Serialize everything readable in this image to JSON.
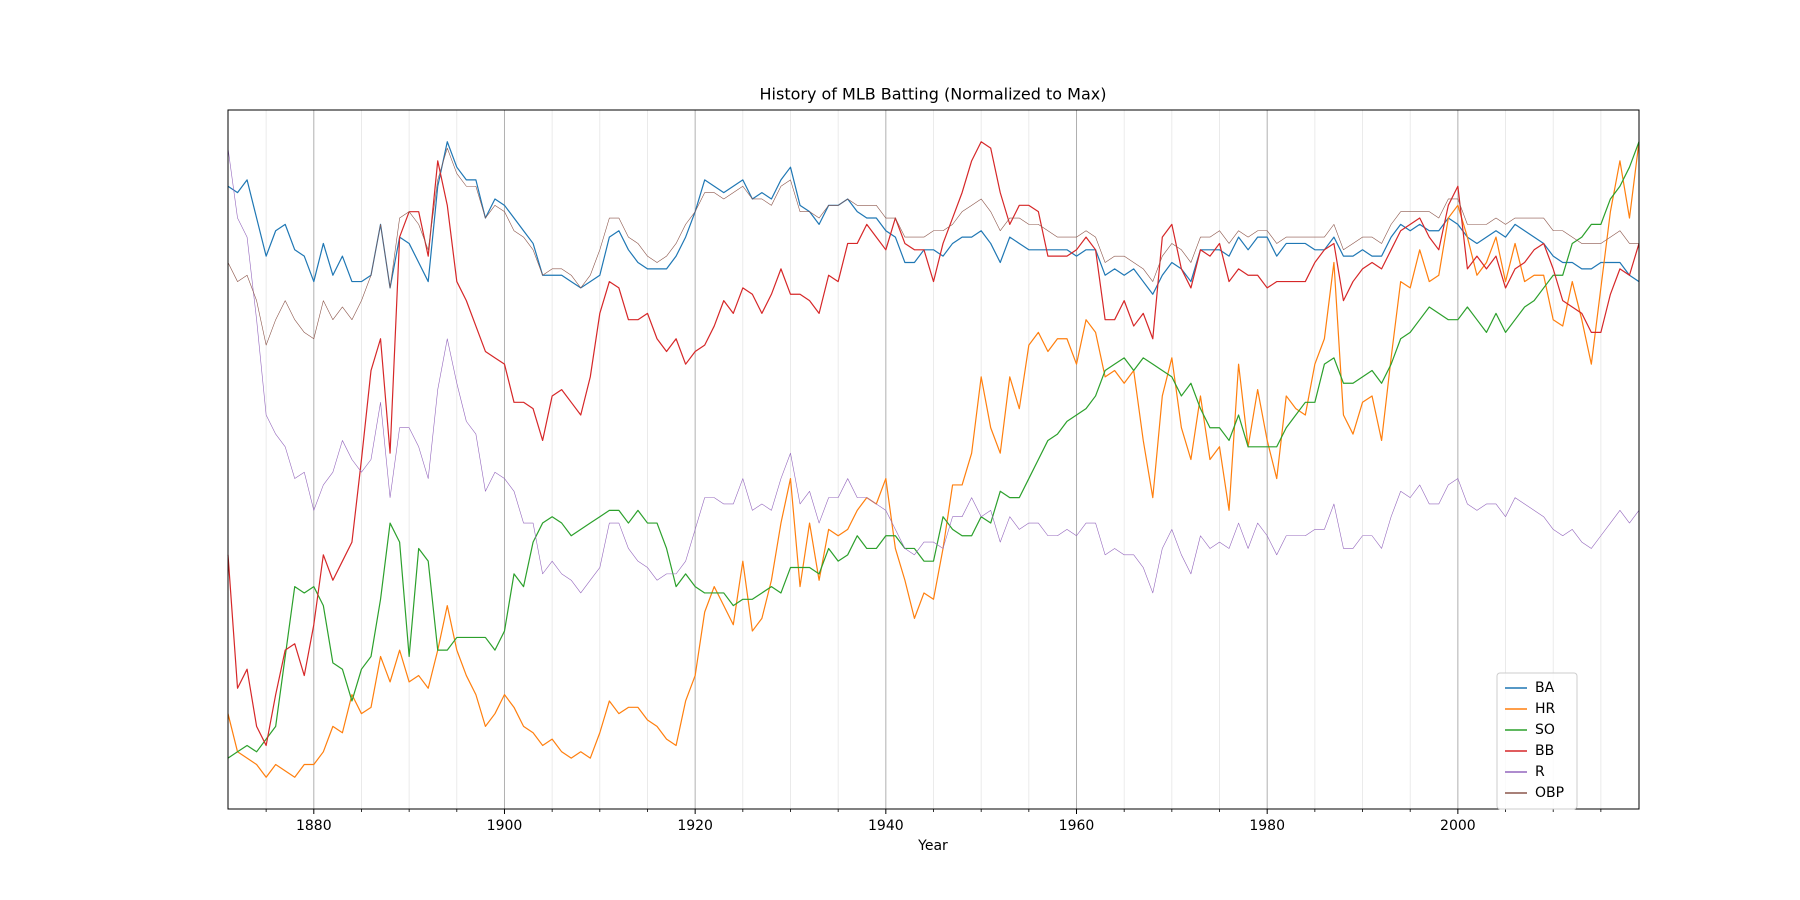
{
  "chart_data": {
    "type": "line",
    "title": "History of MLB Batting (Normalized to Max)",
    "xlabel": "Year",
    "x": [
      1871,
      1872,
      1873,
      1874,
      1875,
      1876,
      1877,
      1878,
      1879,
      1880,
      1881,
      1882,
      1883,
      1884,
      1885,
      1886,
      1887,
      1888,
      1889,
      1890,
      1891,
      1892,
      1893,
      1894,
      1895,
      1896,
      1897,
      1898,
      1899,
      1900,
      1901,
      1902,
      1903,
      1904,
      1905,
      1906,
      1907,
      1908,
      1909,
      1910,
      1911,
      1912,
      1913,
      1914,
      1915,
      1916,
      1917,
      1918,
      1919,
      1920,
      1921,
      1922,
      1923,
      1924,
      1925,
      1926,
      1927,
      1928,
      1929,
      1930,
      1931,
      1932,
      1933,
      1934,
      1935,
      1936,
      1937,
      1938,
      1939,
      1940,
      1941,
      1942,
      1943,
      1944,
      1945,
      1946,
      1947,
      1948,
      1949,
      1950,
      1951,
      1952,
      1953,
      1954,
      1955,
      1956,
      1957,
      1958,
      1959,
      1960,
      1961,
      1962,
      1963,
      1964,
      1965,
      1966,
      1967,
      1968,
      1969,
      1970,
      1971,
      1972,
      1973,
      1974,
      1975,
      1976,
      1977,
      1978,
      1979,
      1980,
      1981,
      1982,
      1983,
      1984,
      1985,
      1986,
      1987,
      1988,
      1989,
      1990,
      1991,
      1992,
      1993,
      1994,
      1995,
      1996,
      1997,
      1998,
      1999,
      2000,
      2001,
      2002,
      2003,
      2004,
      2005,
      2006,
      2007,
      2008,
      2009,
      2010,
      2011,
      2012,
      2013,
      2014,
      2015,
      2016,
      2017,
      2018,
      2019
    ],
    "series": [
      {
        "name": "BA",
        "color": "#1f77b4",
        "linewidth": 1.2,
        "values": [
          0.93,
          0.92,
          0.94,
          0.88,
          0.82,
          0.86,
          0.87,
          0.83,
          0.82,
          0.78,
          0.84,
          0.79,
          0.82,
          0.78,
          0.78,
          0.79,
          0.87,
          0.77,
          0.85,
          0.84,
          0.81,
          0.78,
          0.93,
          1.0,
          0.96,
          0.94,
          0.94,
          0.88,
          0.91,
          0.9,
          0.88,
          0.86,
          0.84,
          0.79,
          0.79,
          0.79,
          0.78,
          0.77,
          0.78,
          0.79,
          0.85,
          0.86,
          0.83,
          0.81,
          0.8,
          0.8,
          0.8,
          0.82,
          0.85,
          0.89,
          0.94,
          0.93,
          0.92,
          0.93,
          0.94,
          0.91,
          0.92,
          0.91,
          0.94,
          0.96,
          0.9,
          0.89,
          0.87,
          0.9,
          0.9,
          0.91,
          0.89,
          0.88,
          0.88,
          0.86,
          0.85,
          0.81,
          0.81,
          0.83,
          0.83,
          0.82,
          0.84,
          0.85,
          0.85,
          0.86,
          0.84,
          0.81,
          0.85,
          0.84,
          0.83,
          0.83,
          0.83,
          0.83,
          0.83,
          0.82,
          0.83,
          0.83,
          0.79,
          0.8,
          0.79,
          0.8,
          0.78,
          0.76,
          0.79,
          0.81,
          0.8,
          0.78,
          0.83,
          0.83,
          0.83,
          0.82,
          0.85,
          0.83,
          0.85,
          0.85,
          0.82,
          0.84,
          0.84,
          0.84,
          0.83,
          0.83,
          0.85,
          0.82,
          0.82,
          0.83,
          0.82,
          0.82,
          0.85,
          0.87,
          0.86,
          0.87,
          0.86,
          0.86,
          0.88,
          0.87,
          0.85,
          0.84,
          0.85,
          0.86,
          0.85,
          0.87,
          0.86,
          0.85,
          0.84,
          0.82,
          0.81,
          0.81,
          0.8,
          0.8,
          0.81,
          0.81,
          0.81,
          0.79,
          0.78
        ]
      },
      {
        "name": "HR",
        "color": "#ff7f0e",
        "linewidth": 1.2,
        "values": [
          0.1,
          0.04,
          0.03,
          0.02,
          0.0,
          0.02,
          0.01,
          0.0,
          0.02,
          0.02,
          0.04,
          0.08,
          0.07,
          0.13,
          0.1,
          0.11,
          0.19,
          0.15,
          0.2,
          0.15,
          0.16,
          0.14,
          0.2,
          0.27,
          0.2,
          0.16,
          0.13,
          0.08,
          0.1,
          0.13,
          0.11,
          0.08,
          0.07,
          0.05,
          0.06,
          0.04,
          0.03,
          0.04,
          0.03,
          0.07,
          0.12,
          0.1,
          0.11,
          0.11,
          0.09,
          0.08,
          0.06,
          0.05,
          0.12,
          0.16,
          0.26,
          0.3,
          0.27,
          0.24,
          0.34,
          0.23,
          0.25,
          0.31,
          0.4,
          0.47,
          0.3,
          0.4,
          0.31,
          0.39,
          0.38,
          0.39,
          0.42,
          0.44,
          0.43,
          0.47,
          0.36,
          0.31,
          0.25,
          0.29,
          0.28,
          0.36,
          0.46,
          0.46,
          0.51,
          0.63,
          0.55,
          0.51,
          0.63,
          0.58,
          0.68,
          0.7,
          0.67,
          0.69,
          0.69,
          0.65,
          0.72,
          0.7,
          0.63,
          0.64,
          0.62,
          0.64,
          0.53,
          0.44,
          0.6,
          0.66,
          0.55,
          0.5,
          0.6,
          0.5,
          0.52,
          0.42,
          0.65,
          0.52,
          0.61,
          0.53,
          0.47,
          0.6,
          0.58,
          0.57,
          0.65,
          0.69,
          0.81,
          0.57,
          0.54,
          0.59,
          0.6,
          0.53,
          0.66,
          0.78,
          0.77,
          0.83,
          0.78,
          0.79,
          0.88,
          0.9,
          0.85,
          0.79,
          0.81,
          0.85,
          0.78,
          0.84,
          0.78,
          0.79,
          0.79,
          0.72,
          0.71,
          0.78,
          0.72,
          0.65,
          0.77,
          0.89,
          0.97,
          0.88,
          1.0
        ]
      },
      {
        "name": "SO",
        "color": "#2ca02c",
        "linewidth": 1.2,
        "values": [
          0.03,
          0.04,
          0.05,
          0.04,
          0.06,
          0.08,
          0.19,
          0.3,
          0.29,
          0.3,
          0.27,
          0.18,
          0.17,
          0.12,
          0.17,
          0.19,
          0.28,
          0.4,
          0.37,
          0.19,
          0.36,
          0.34,
          0.2,
          0.2,
          0.22,
          0.22,
          0.22,
          0.22,
          0.2,
          0.23,
          0.32,
          0.3,
          0.37,
          0.4,
          0.41,
          0.4,
          0.38,
          0.39,
          0.4,
          0.41,
          0.42,
          0.42,
          0.4,
          0.42,
          0.4,
          0.4,
          0.36,
          0.3,
          0.32,
          0.3,
          0.29,
          0.29,
          0.29,
          0.27,
          0.28,
          0.28,
          0.29,
          0.3,
          0.29,
          0.33,
          0.33,
          0.33,
          0.32,
          0.36,
          0.34,
          0.35,
          0.38,
          0.36,
          0.36,
          0.38,
          0.38,
          0.36,
          0.36,
          0.34,
          0.34,
          0.41,
          0.39,
          0.38,
          0.38,
          0.41,
          0.4,
          0.45,
          0.44,
          0.44,
          0.47,
          0.5,
          0.53,
          0.54,
          0.56,
          0.57,
          0.58,
          0.6,
          0.64,
          0.65,
          0.66,
          0.64,
          0.66,
          0.65,
          0.64,
          0.63,
          0.6,
          0.62,
          0.58,
          0.55,
          0.55,
          0.53,
          0.57,
          0.52,
          0.52,
          0.52,
          0.52,
          0.55,
          0.57,
          0.59,
          0.59,
          0.65,
          0.66,
          0.62,
          0.62,
          0.63,
          0.64,
          0.62,
          0.65,
          0.69,
          0.7,
          0.72,
          0.74,
          0.73,
          0.72,
          0.72,
          0.74,
          0.72,
          0.7,
          0.73,
          0.7,
          0.72,
          0.74,
          0.75,
          0.77,
          0.79,
          0.79,
          0.84,
          0.85,
          0.87,
          0.87,
          0.91,
          0.93,
          0.96,
          1.0
        ]
      },
      {
        "name": "BB",
        "color": "#d62728",
        "linewidth": 1.2,
        "values": [
          0.35,
          0.14,
          0.17,
          0.08,
          0.05,
          0.13,
          0.2,
          0.21,
          0.16,
          0.24,
          0.35,
          0.31,
          0.34,
          0.37,
          0.5,
          0.64,
          0.69,
          0.51,
          0.85,
          0.89,
          0.89,
          0.82,
          0.97,
          0.9,
          0.78,
          0.75,
          0.71,
          0.67,
          0.66,
          0.65,
          0.59,
          0.59,
          0.58,
          0.53,
          0.6,
          0.61,
          0.59,
          0.57,
          0.63,
          0.73,
          0.78,
          0.77,
          0.72,
          0.72,
          0.73,
          0.69,
          0.67,
          0.69,
          0.65,
          0.67,
          0.68,
          0.71,
          0.75,
          0.73,
          0.77,
          0.76,
          0.73,
          0.76,
          0.8,
          0.76,
          0.76,
          0.75,
          0.73,
          0.79,
          0.78,
          0.84,
          0.84,
          0.87,
          0.85,
          0.83,
          0.88,
          0.84,
          0.83,
          0.83,
          0.78,
          0.84,
          0.88,
          0.92,
          0.97,
          1.0,
          0.99,
          0.92,
          0.87,
          0.9,
          0.9,
          0.89,
          0.82,
          0.82,
          0.82,
          0.83,
          0.85,
          0.83,
          0.72,
          0.72,
          0.75,
          0.71,
          0.73,
          0.69,
          0.85,
          0.87,
          0.8,
          0.77,
          0.83,
          0.82,
          0.84,
          0.78,
          0.8,
          0.79,
          0.79,
          0.77,
          0.78,
          0.78,
          0.78,
          0.78,
          0.81,
          0.83,
          0.84,
          0.75,
          0.78,
          0.8,
          0.81,
          0.8,
          0.83,
          0.86,
          0.87,
          0.88,
          0.85,
          0.83,
          0.9,
          0.93,
          0.8,
          0.82,
          0.8,
          0.82,
          0.77,
          0.8,
          0.81,
          0.83,
          0.84,
          0.8,
          0.75,
          0.74,
          0.73,
          0.7,
          0.7,
          0.76,
          0.8,
          0.79,
          0.84
        ]
      },
      {
        "name": "R",
        "color": "#9467bd",
        "linewidth": 0.6,
        "values": [
          0.99,
          0.88,
          0.85,
          0.72,
          0.57,
          0.54,
          0.52,
          0.47,
          0.48,
          0.42,
          0.46,
          0.48,
          0.53,
          0.5,
          0.48,
          0.5,
          0.59,
          0.44,
          0.55,
          0.55,
          0.52,
          0.47,
          0.61,
          0.69,
          0.62,
          0.56,
          0.54,
          0.45,
          0.48,
          0.47,
          0.45,
          0.4,
          0.4,
          0.32,
          0.34,
          0.32,
          0.31,
          0.29,
          0.31,
          0.33,
          0.4,
          0.4,
          0.36,
          0.34,
          0.33,
          0.31,
          0.32,
          0.32,
          0.34,
          0.39,
          0.44,
          0.44,
          0.43,
          0.43,
          0.47,
          0.42,
          0.43,
          0.42,
          0.47,
          0.51,
          0.43,
          0.45,
          0.4,
          0.44,
          0.44,
          0.47,
          0.44,
          0.44,
          0.43,
          0.42,
          0.39,
          0.36,
          0.35,
          0.37,
          0.37,
          0.36,
          0.41,
          0.41,
          0.44,
          0.41,
          0.42,
          0.37,
          0.41,
          0.39,
          0.4,
          0.4,
          0.38,
          0.38,
          0.39,
          0.38,
          0.4,
          0.4,
          0.35,
          0.36,
          0.35,
          0.35,
          0.33,
          0.29,
          0.36,
          0.39,
          0.35,
          0.32,
          0.38,
          0.36,
          0.37,
          0.36,
          0.4,
          0.36,
          0.4,
          0.38,
          0.35,
          0.38,
          0.38,
          0.38,
          0.39,
          0.39,
          0.43,
          0.36,
          0.36,
          0.38,
          0.38,
          0.36,
          0.41,
          0.45,
          0.44,
          0.46,
          0.43,
          0.43,
          0.46,
          0.47,
          0.43,
          0.42,
          0.43,
          0.43,
          0.41,
          0.44,
          0.43,
          0.42,
          0.41,
          0.39,
          0.38,
          0.39,
          0.37,
          0.36,
          0.38,
          0.4,
          0.42,
          0.4,
          0.42
        ]
      },
      {
        "name": "OBP",
        "color": "#8c564b",
        "linewidth": 0.6,
        "values": [
          0.81,
          0.78,
          0.79,
          0.75,
          0.68,
          0.72,
          0.75,
          0.72,
          0.7,
          0.69,
          0.75,
          0.72,
          0.74,
          0.72,
          0.75,
          0.79,
          0.87,
          0.77,
          0.88,
          0.89,
          0.87,
          0.83,
          0.94,
          0.99,
          0.95,
          0.93,
          0.93,
          0.88,
          0.9,
          0.89,
          0.86,
          0.85,
          0.83,
          0.79,
          0.8,
          0.8,
          0.79,
          0.77,
          0.79,
          0.83,
          0.88,
          0.88,
          0.85,
          0.84,
          0.82,
          0.81,
          0.82,
          0.84,
          0.87,
          0.89,
          0.92,
          0.92,
          0.91,
          0.92,
          0.93,
          0.91,
          0.91,
          0.9,
          0.93,
          0.94,
          0.89,
          0.89,
          0.88,
          0.9,
          0.9,
          0.91,
          0.9,
          0.9,
          0.9,
          0.88,
          0.88,
          0.85,
          0.85,
          0.85,
          0.86,
          0.86,
          0.87,
          0.89,
          0.9,
          0.91,
          0.89,
          0.86,
          0.88,
          0.88,
          0.87,
          0.87,
          0.86,
          0.85,
          0.85,
          0.85,
          0.86,
          0.85,
          0.81,
          0.82,
          0.82,
          0.81,
          0.8,
          0.78,
          0.82,
          0.84,
          0.83,
          0.81,
          0.85,
          0.85,
          0.86,
          0.84,
          0.86,
          0.85,
          0.86,
          0.86,
          0.84,
          0.85,
          0.85,
          0.85,
          0.85,
          0.85,
          0.87,
          0.83,
          0.84,
          0.85,
          0.85,
          0.84,
          0.87,
          0.89,
          0.89,
          0.89,
          0.89,
          0.88,
          0.91,
          0.91,
          0.87,
          0.87,
          0.87,
          0.88,
          0.87,
          0.88,
          0.88,
          0.88,
          0.88,
          0.86,
          0.86,
          0.85,
          0.84,
          0.84,
          0.84,
          0.85,
          0.86,
          0.84,
          0.84
        ]
      }
    ],
    "xlim": [
      1871,
      2019
    ],
    "ylim": [
      -0.05,
      1.05
    ],
    "xticks": [
      1880,
      1900,
      1920,
      1940,
      1960,
      1980,
      2000
    ],
    "xminorticks": [
      1875,
      1885,
      1890,
      1895,
      1905,
      1910,
      1915,
      1925,
      1930,
      1935,
      1945,
      1950,
      1955,
      1965,
      1970,
      1975,
      1985,
      1990,
      1995,
      2005,
      2010,
      2015
    ],
    "grid": true,
    "legend": "lower right"
  }
}
